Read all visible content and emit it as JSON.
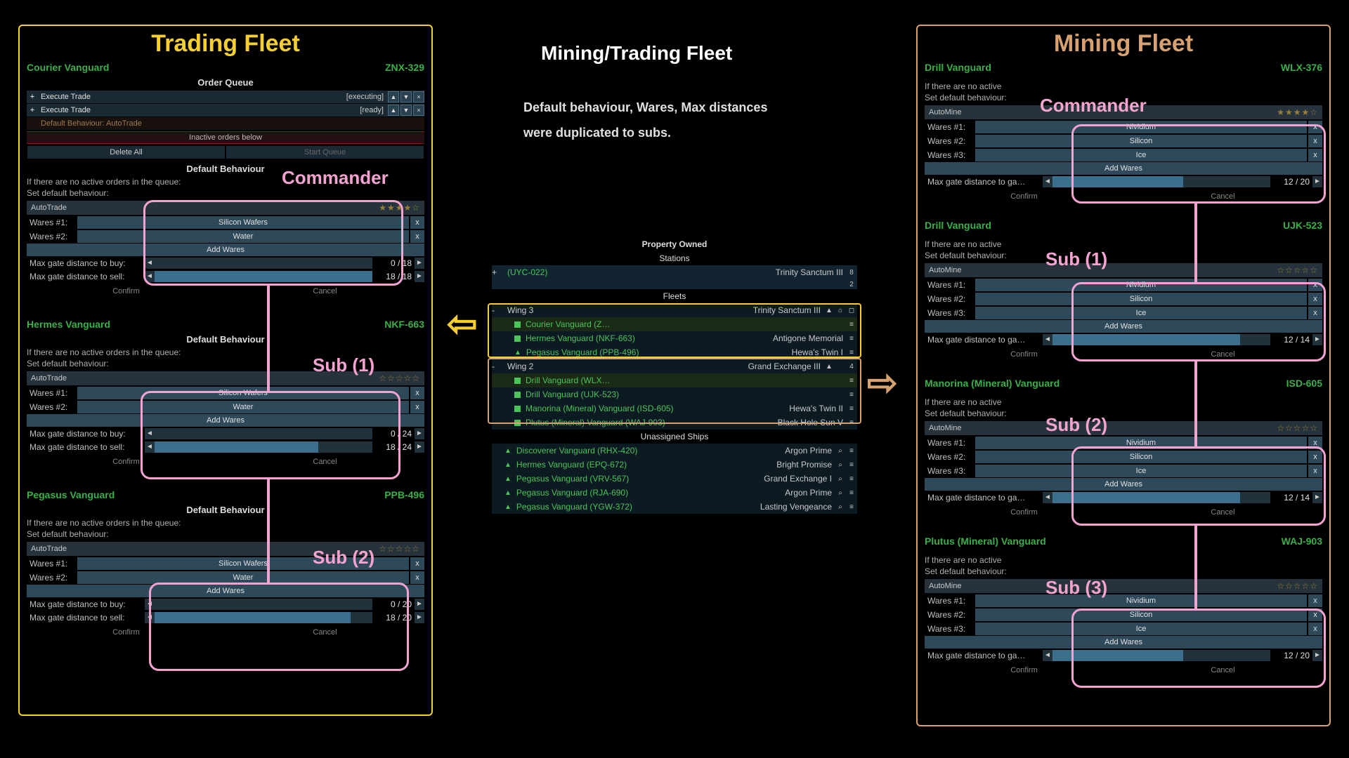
{
  "colors": {
    "yellow": "#f5cf2e",
    "tan": "#d8a170",
    "pink": "#f4a3d1",
    "green": "#4cc35b",
    "slider": "#3b6f8c"
  },
  "center": {
    "title": "Mining/Trading Fleet",
    "note1": "Default behaviour, Wares, Max distances",
    "note2": "were duplicated to subs.",
    "property_owned": "Property Owned",
    "stations_hdr": "Stations",
    "station": {
      "id": "(UYC-022)",
      "loc": "Trinity Sanctum III",
      "count1": "8",
      "count2": "2"
    },
    "fleets_hdr": "Fleets",
    "wing3": {
      "name": "Wing 3",
      "loc": "Trinity Sanctum III",
      "n1": "1",
      "n2": "1",
      "n3": "1"
    },
    "wing3_ships": [
      {
        "name": "Courier Vanguard (Z…",
        "loc": "",
        "kind": "sq"
      },
      {
        "name": "Hermes Vanguard (NKF-663)",
        "loc": "Antigone Memorial",
        "kind": "sq"
      },
      {
        "name": "Pegasus Vanguard (PPB-496)",
        "loc": "Hewa's Twin I",
        "kind": "tri"
      }
    ],
    "wing2": {
      "name": "Wing 2",
      "loc": "Grand Exchange III",
      "n1": "",
      "n2": "",
      "n3": "4"
    },
    "wing2_ships": [
      {
        "name": "Drill Vanguard (WLX…",
        "loc": "",
        "kind": "sq"
      },
      {
        "name": "Drill Vanguard (UJK-523)",
        "loc": "",
        "kind": "sq"
      },
      {
        "name": "Manorina (Mineral) Vanguard (ISD-605)",
        "loc": "Hewa's Twin II",
        "kind": "sq"
      },
      {
        "name": "Plutus (Mineral) Vanguard (WAJ-903)",
        "loc": "Black Hole Sun V",
        "kind": "sq"
      }
    ],
    "unassigned_hdr": "Unassigned Ships",
    "unassigned": [
      {
        "name": "Discoverer Vanguard (RHX-420)",
        "loc": "Argon Prime"
      },
      {
        "name": "Hermes Vanguard (EPQ-672)",
        "loc": "Bright Promise"
      },
      {
        "name": "Pegasus Vanguard (VRV-567)",
        "loc": "Grand Exchange I"
      },
      {
        "name": "Pegasus Vanguard (RJA-690)",
        "loc": "Argon Prime"
      },
      {
        "name": "Pegasus Vanguard (YGW-372)",
        "loc": "Lasting Vengeance"
      }
    ]
  },
  "left": {
    "title": "Trading Fleet",
    "default_behaviour": "Default Behaviour",
    "order_queue": "Order Queue",
    "execute_trade": "Execute Trade",
    "executing": "[executing]",
    "ready": "[ready]",
    "default_line": "Default Behaviour: AutoTrade",
    "inactive": "Inactive orders below",
    "delete_all": "Delete All",
    "start_queue": "Start Queue",
    "no_orders": "If there are no active orders in the queue:",
    "set_behav": "Set default behaviour:",
    "add_wares": "Add Wares",
    "confirm": "Confirm",
    "cancel": "Cancel",
    "wares1": "Wares #1:",
    "wares2": "Wares #2:",
    "max_buy": "Max gate distance to buy:",
    "max_sell": "Max gate distance to sell:",
    "labels": {
      "commander": "Commander",
      "sub1": "Sub (1)",
      "sub2": "Sub (2)"
    },
    "ships": [
      {
        "name": "Courier Vanguard",
        "id": "ZNX-329",
        "behav": "AutoTrade",
        "stars": "★★★★☆",
        "wares": [
          "Silicon Wafers",
          "Water"
        ],
        "sliders": [
          {
            "label": "Max gate distance to buy:",
            "val": "0 / 18",
            "fill": 0
          },
          {
            "label": "Max gate distance to sell:",
            "val": "18 / 18",
            "fill": 100
          }
        ],
        "has_queue": true
      },
      {
        "name": "Hermes Vanguard",
        "id": "NKF-663",
        "behav": "AutoTrade",
        "stars": "☆☆☆☆☆",
        "wares": [
          "Silicon Wafers",
          "Water"
        ],
        "sliders": [
          {
            "label": "Max gate distance to buy:",
            "val": "0 / 24",
            "fill": 0
          },
          {
            "label": "Max gate distance to sell:",
            "val": "18 / 24",
            "fill": 75
          }
        ],
        "has_queue": false
      },
      {
        "name": "Pegasus Vanguard",
        "id": "PPB-496",
        "behav": "AutoTrade",
        "stars": "☆☆☆☆☆",
        "wares": [
          "Silicon Wafers",
          "Water"
        ],
        "sliders": [
          {
            "label": "Max gate distance to buy:",
            "val": "0 / 20",
            "fill": 0
          },
          {
            "label": "Max gate distance to sell:",
            "val": "18 / 20",
            "fill": 90
          }
        ],
        "has_queue": false
      }
    ]
  },
  "right": {
    "title": "Mining Fleet",
    "default_behaviour": "Default Behaviour",
    "no_orders": "If there are no active",
    "set_behav": "Set default behaviour:",
    "add_wares": "Add Wares",
    "confirm": "Confirm",
    "cancel": "Cancel",
    "wares1": "Wares #1:",
    "wares2": "Wares #2:",
    "wares3": "Wares #3:",
    "max": "Max gate distance to ga…",
    "labels": {
      "commander": "Commander",
      "sub1": "Sub (1)",
      "sub2": "Sub (2)",
      "sub3": "Sub (3)"
    },
    "ships": [
      {
        "name": "Drill Vanguard",
        "id": "WLX-376",
        "behav": "AutoMine",
        "stars": "★★★★☆",
        "wares": [
          "Nividium",
          "Silicon",
          "Ice"
        ],
        "slider": {
          "val": "12 / 20",
          "fill": 60
        }
      },
      {
        "name": "Drill Vanguard",
        "id": "UJK-523",
        "behav": "AutoMine",
        "stars": "☆☆☆☆☆",
        "wares": [
          "Nividium",
          "Silicon",
          "Ice"
        ],
        "slider": {
          "val": "12 / 14",
          "fill": 86
        }
      },
      {
        "name": "Manorina (Mineral) Vanguard",
        "id": "ISD-605",
        "behav": "AutoMine",
        "stars": "☆☆☆☆☆",
        "wares": [
          "Nividium",
          "Silicon",
          "Ice"
        ],
        "slider": {
          "val": "12 / 14",
          "fill": 86
        }
      },
      {
        "name": "Plutus (Mineral) Vanguard",
        "id": "WAJ-903",
        "behav": "AutoMine",
        "stars": "☆☆☆☆☆",
        "wares": [
          "Nividium",
          "Silicon",
          "Ice"
        ],
        "slider": {
          "val": "12 / 20",
          "fill": 60
        }
      }
    ]
  }
}
